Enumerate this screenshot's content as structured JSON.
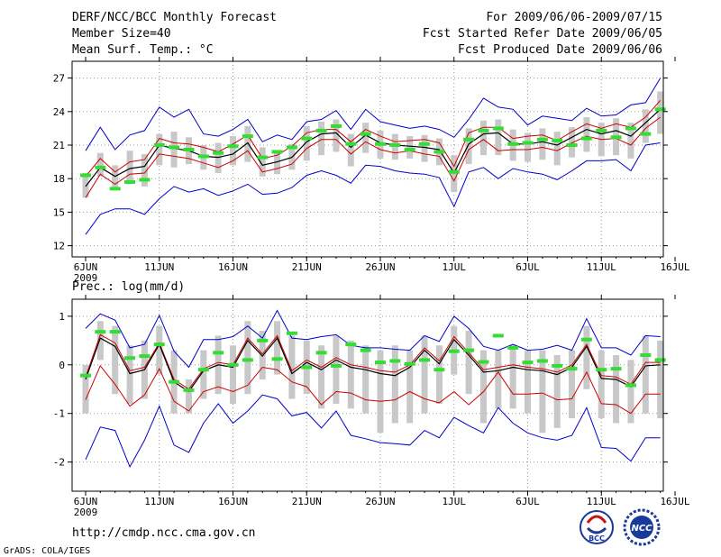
{
  "header": {
    "title": "DERF/NCC/BCC Monthly Forecast",
    "members": "Member Size=40",
    "variable": "Mean Surf. Temp.: °C",
    "period": "For 2009/06/06-2009/07/15",
    "started": "Fcst Started Refer Date 2009/06/05",
    "produced": "Fcst Produced Date 2009/06/06"
  },
  "footer": {
    "url": "http://cmdp.ncc.cma.gov.cn",
    "credit": "GrADS: COLA/IGES",
    "logo_bcc": "BCC",
    "logo_ncc": "NCC"
  },
  "colors": {
    "envelope": "#0000cc",
    "spread": "#cc0000",
    "mean": "#000000",
    "obs": "#33dd33",
    "box": "#c8c8c8",
    "grid": "#999999"
  },
  "x_ticks": [
    "6JUN",
    "11JUN",
    "16JUN",
    "21JUN",
    "26JUN",
    "1JUL",
    "6JUL",
    "11JUL",
    "16JUL"
  ],
  "year_label": "2009",
  "chart_data": [
    {
      "type": "line",
      "title": "Mean Surf. Temp.: °C",
      "x_days": [
        0,
        1,
        2,
        3,
        4,
        5,
        6,
        7,
        8,
        9,
        10,
        11,
        12,
        13,
        14,
        15,
        16,
        17,
        18,
        19,
        20,
        21,
        22,
        23,
        24,
        25,
        26,
        27,
        28,
        29,
        30,
        31,
        32,
        33,
        34,
        35,
        36,
        37,
        38,
        39
      ],
      "ylim": [
        11,
        28.5
      ],
      "yticks": [
        12,
        15,
        18,
        21,
        24,
        27
      ],
      "series": [
        {
          "name": "max",
          "values": [
            13.0,
            14.8,
            15.3,
            15.3,
            14.8,
            16.2,
            17.3,
            16.8,
            17.1,
            16.5,
            16.9,
            17.5,
            16.6,
            16.7,
            17.2,
            18.3,
            18.7,
            18.3,
            17.6,
            19.2,
            19.1,
            18.7,
            18.5,
            18.4,
            18.1,
            15.5,
            18.6,
            19.0,
            18.0,
            18.9,
            18.6,
            18.4,
            17.9,
            18.7,
            19.6,
            19.6,
            19.7,
            18.7,
            21.0,
            21.2
          ]
        },
        {
          "name": "lower",
          "values": [
            16.3,
            18.4,
            17.5,
            18.4,
            18.5,
            20.2,
            20.0,
            19.8,
            19.4,
            19.0,
            19.6,
            20.5,
            18.6,
            18.9,
            19.3,
            20.7,
            21.5,
            21.5,
            20.2,
            21.3,
            20.6,
            20.3,
            20.5,
            20.2,
            20.0,
            17.8,
            20.6,
            21.5,
            20.5,
            20.6,
            20.6,
            20.8,
            20.5,
            21.2,
            21.8,
            21.5,
            21.6,
            21.0,
            22.5,
            23.5
          ]
        },
        {
          "name": "mean",
          "values": [
            17.3,
            19.0,
            18.2,
            18.9,
            19.1,
            21.0,
            20.7,
            20.5,
            20.0,
            19.9,
            20.2,
            21.2,
            19.2,
            19.5,
            19.9,
            21.3,
            22.0,
            22.1,
            20.8,
            21.9,
            21.2,
            21.0,
            20.9,
            20.8,
            20.6,
            18.5,
            21.1,
            22.0,
            22.1,
            21.1,
            21.1,
            21.3,
            21.0,
            21.7,
            22.4,
            22.0,
            22.3,
            21.8,
            23.0,
            24.2
          ]
        },
        {
          "name": "upper",
          "values": [
            18.2,
            19.8,
            18.6,
            19.5,
            19.7,
            21.6,
            21.2,
            21.1,
            20.8,
            20.4,
            21.1,
            21.9,
            19.8,
            20.1,
            20.9,
            22.1,
            22.4,
            22.4,
            21.3,
            22.4,
            21.8,
            21.3,
            21.4,
            21.5,
            21.2,
            19.1,
            22.1,
            22.6,
            22.6,
            21.6,
            21.8,
            21.9,
            21.4,
            22.2,
            22.9,
            22.5,
            22.9,
            22.6,
            23.5,
            25.0
          ]
        },
        {
          "name": "min",
          "values": [
            20.5,
            22.6,
            20.6,
            21.9,
            22.3,
            24.4,
            23.5,
            24.2,
            22.0,
            21.8,
            22.4,
            23.3,
            21.3,
            21.9,
            21.5,
            23.1,
            23.3,
            24.1,
            22.4,
            24.2,
            23.1,
            22.8,
            22.5,
            22.7,
            22.4,
            21.7,
            23.3,
            25.2,
            24.4,
            24.2,
            22.8,
            23.6,
            23.4,
            23.2,
            24.3,
            23.6,
            23.7,
            24.6,
            24.8,
            27.0
          ]
        },
        {
          "name": "observed",
          "values": [
            18.3,
            19.0,
            17.1,
            17.7,
            17.9,
            21.0,
            20.8,
            20.6,
            20.0,
            20.3,
            20.9,
            21.8,
            19.9,
            20.4,
            20.8,
            21.6,
            22.3,
            22.7,
            21.1,
            22.0,
            21.1,
            21.0,
            20.6,
            21.1,
            20.4,
            18.6,
            21.5,
            22.3,
            22.5,
            21.1,
            21.2,
            21.5,
            21.4,
            21.0,
            21.6,
            22.3,
            21.7,
            22.5,
            22.0,
            24.2
          ]
        }
      ],
      "box_ranges": [
        [
          16.3,
          18.5
        ],
        [
          18.2,
          20.3
        ],
        [
          17.2,
          19.2
        ],
        [
          17.5,
          20.5
        ],
        [
          17.3,
          20.2
        ],
        [
          19.2,
          22.0
        ],
        [
          19.0,
          22.2
        ],
        [
          19.3,
          21.7
        ],
        [
          18.8,
          21.0
        ],
        [
          18.5,
          21.2
        ],
        [
          19.2,
          21.8
        ],
        [
          19.5,
          22.7
        ],
        [
          18.2,
          20.8
        ],
        [
          18.4,
          20.5
        ],
        [
          18.8,
          21.1
        ],
        [
          19.6,
          22.7
        ],
        [
          20.1,
          23.1
        ],
        [
          20.4,
          23.3
        ],
        [
          19.1,
          22.0
        ],
        [
          20.3,
          23.0
        ],
        [
          19.8,
          22.3
        ],
        [
          19.7,
          22.0
        ],
        [
          19.8,
          21.8
        ],
        [
          19.5,
          21.9
        ],
        [
          19.2,
          21.6
        ],
        [
          16.8,
          20.1
        ],
        [
          19.3,
          22.5
        ],
        [
          20.1,
          23.2
        ],
        [
          20.1,
          23.3
        ],
        [
          19.6,
          22.4
        ],
        [
          19.5,
          22.1
        ],
        [
          19.7,
          22.5
        ],
        [
          19.2,
          22.2
        ],
        [
          19.9,
          22.6
        ],
        [
          20.4,
          23.5
        ],
        [
          20.0,
          23.0
        ],
        [
          20.1,
          23.4
        ],
        [
          19.8,
          23.0
        ],
        [
          21.2,
          24.2
        ],
        [
          22.0,
          25.8
        ]
      ]
    },
    {
      "type": "line",
      "title": "Prec.: log(mm/d)",
      "x_days": [
        0,
        1,
        2,
        3,
        4,
        5,
        6,
        7,
        8,
        9,
        10,
        11,
        12,
        13,
        14,
        15,
        16,
        17,
        18,
        19,
        20,
        21,
        22,
        23,
        24,
        25,
        26,
        27,
        28,
        29,
        30,
        31,
        32,
        33,
        34,
        35,
        36,
        37,
        38,
        39
      ],
      "ylim": [
        -2.6,
        1.35
      ],
      "yticks": [
        -2,
        -1,
        0,
        1
      ],
      "series": [
        {
          "name": "min",
          "values": [
            -1.95,
            -1.28,
            -1.35,
            -2.1,
            -1.55,
            -0.85,
            -1.65,
            -1.8,
            -1.2,
            -0.8,
            -1.2,
            -0.95,
            -0.62,
            -0.7,
            -1.05,
            -0.98,
            -1.3,
            -0.95,
            -1.45,
            -1.52,
            -1.6,
            -1.62,
            -1.65,
            -1.35,
            -1.5,
            -1.08,
            -1.25,
            -1.4,
            -0.88,
            -1.2,
            -1.4,
            -1.5,
            -1.55,
            -1.45,
            -0.88,
            -1.7,
            -1.72,
            -1.98,
            -1.5,
            -1.5
          ]
        },
        {
          "name": "lower",
          "values": [
            -0.72,
            -0.02,
            -0.4,
            -0.85,
            -0.62,
            -0.08,
            -0.75,
            -0.95,
            -0.55,
            -0.45,
            -0.55,
            -0.42,
            -0.05,
            -0.1,
            -0.35,
            -0.45,
            -0.82,
            -0.55,
            -0.58,
            -0.72,
            -0.75,
            -0.72,
            -0.55,
            -0.7,
            -0.78,
            -0.55,
            -0.82,
            -0.55,
            -0.15,
            -0.6,
            -0.6,
            -0.58,
            -0.72,
            -0.7,
            -0.15,
            -0.8,
            -0.82,
            -1.0,
            -0.6,
            -0.6
          ]
        },
        {
          "name": "mean",
          "values": [
            -0.3,
            0.55,
            0.38,
            -0.18,
            -0.1,
            0.42,
            -0.35,
            -0.55,
            -0.12,
            0.0,
            -0.05,
            0.5,
            0.18,
            0.55,
            -0.18,
            0.05,
            -0.1,
            0.1,
            -0.05,
            -0.1,
            -0.18,
            -0.22,
            -0.05,
            0.3,
            0.02,
            0.52,
            0.2,
            -0.15,
            -0.12,
            -0.05,
            -0.1,
            -0.12,
            -0.2,
            -0.05,
            0.38,
            -0.28,
            -0.3,
            -0.45,
            -0.02,
            0.0
          ]
        },
        {
          "name": "upper",
          "values": [
            -0.25,
            0.62,
            0.45,
            -0.12,
            -0.05,
            0.45,
            -0.3,
            -0.5,
            -0.08,
            0.05,
            0.0,
            0.55,
            0.22,
            0.6,
            -0.12,
            0.1,
            -0.05,
            0.15,
            0.0,
            -0.05,
            -0.12,
            -0.15,
            0.0,
            0.35,
            0.08,
            0.58,
            0.25,
            -0.1,
            -0.05,
            0.0,
            -0.05,
            -0.08,
            -0.15,
            0.0,
            0.42,
            -0.22,
            -0.25,
            -0.4,
            0.05,
            0.05
          ]
        },
        {
          "name": "max",
          "values": [
            0.75,
            1.05,
            0.92,
            0.35,
            0.42,
            1.02,
            0.28,
            -0.05,
            0.52,
            0.52,
            0.58,
            0.8,
            0.55,
            1.12,
            0.55,
            0.52,
            0.58,
            0.62,
            0.4,
            0.35,
            0.35,
            0.32,
            0.3,
            0.6,
            0.48,
            1.0,
            0.75,
            0.38,
            0.3,
            0.42,
            0.3,
            0.32,
            0.4,
            0.3,
            0.95,
            0.35,
            0.35,
            0.2,
            0.6,
            0.58
          ]
        },
        {
          "name": "observed",
          "values": [
            -0.22,
            0.68,
            0.68,
            0.14,
            0.18,
            0.42,
            -0.35,
            -0.52,
            -0.1,
            0.25,
            0.0,
            0.1,
            0.5,
            0.12,
            0.65,
            -0.05,
            0.25,
            -0.02,
            0.42,
            0.3,
            0.05,
            0.08,
            0.02,
            0.1,
            -0.1,
            0.28,
            0.3,
            0.06,
            0.6,
            0.35,
            0.05,
            0.08,
            -0.02,
            -0.08,
            0.52,
            -0.1,
            -0.08,
            -0.42,
            0.2,
            0.1
          ]
        }
      ],
      "box_ranges": [
        [
          -1.0,
          0.0
        ],
        [
          0.1,
          0.9
        ],
        [
          -0.6,
          0.8
        ],
        [
          -0.8,
          0.4
        ],
        [
          -0.7,
          0.5
        ],
        [
          -0.2,
          0.8
        ],
        [
          -1.0,
          0.3
        ],
        [
          -1.0,
          -0.3
        ],
        [
          -0.7,
          0.3
        ],
        [
          -0.6,
          0.6
        ],
        [
          -0.8,
          0.4
        ],
        [
          -0.6,
          0.9
        ],
        [
          -0.3,
          0.7
        ],
        [
          -0.2,
          0.9
        ],
        [
          -0.7,
          0.6
        ],
        [
          -0.6,
          0.5
        ],
        [
          -0.9,
          0.4
        ],
        [
          -0.8,
          0.6
        ],
        [
          -0.9,
          0.5
        ],
        [
          -1.0,
          0.4
        ],
        [
          -1.4,
          0.3
        ],
        [
          -1.2,
          0.4
        ],
        [
          -1.2,
          0.3
        ],
        [
          -1.0,
          0.6
        ],
        [
          -0.8,
          0.4
        ],
        [
          -0.2,
          0.8
        ],
        [
          -0.6,
          0.7
        ],
        [
          -1.2,
          0.3
        ],
        [
          -0.9,
          0.3
        ],
        [
          -0.9,
          0.4
        ],
        [
          -1.0,
          0.3
        ],
        [
          -1.4,
          0.3
        ],
        [
          -1.3,
          0.2
        ],
        [
          -1.1,
          0.3
        ],
        [
          -0.5,
          0.8
        ],
        [
          -1.1,
          0.3
        ],
        [
          -1.2,
          0.2
        ],
        [
          -1.2,
          0.1
        ],
        [
          -1.0,
          0.6
        ],
        [
          -1.1,
          0.5
        ]
      ]
    }
  ]
}
